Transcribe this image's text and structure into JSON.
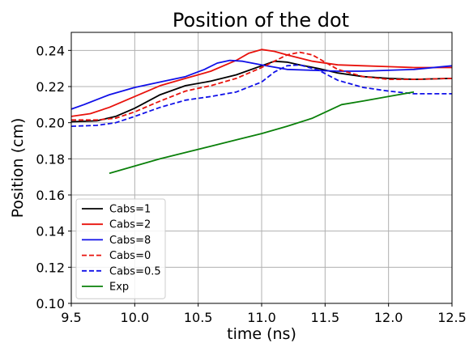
{
  "chart_data": {
    "type": "line",
    "title": "Position of the dot",
    "xlabel": "time (ns)",
    "ylabel": "Position (cm)",
    "xlim": [
      9.5,
      12.5
    ],
    "ylim": [
      0.1,
      0.25
    ],
    "xticks": [
      9.5,
      10.0,
      10.5,
      11.0,
      11.5,
      12.0,
      12.5
    ],
    "xtick_labels": [
      "9.5",
      "10.0",
      "10.5",
      "11.0",
      "11.5",
      "12.0",
      "12.5"
    ],
    "yticks": [
      0.1,
      0.12,
      0.14,
      0.16,
      0.18,
      0.2,
      0.22,
      0.24
    ],
    "ytick_labels": [
      "0.10",
      "0.12",
      "0.14",
      "0.16",
      "0.18",
      "0.20",
      "0.22",
      "0.24"
    ],
    "grid": true,
    "legend_position": "lower-left",
    "series": [
      {
        "name": "Cabs=1",
        "color": "#000000",
        "dash": "solid",
        "x": [
          9.5,
          9.7,
          9.85,
          10.0,
          10.2,
          10.4,
          10.6,
          10.8,
          11.0,
          11.1,
          11.2,
          11.3,
          11.45,
          11.6,
          11.8,
          12.0,
          12.2,
          12.5
        ],
        "y": [
          0.2005,
          0.201,
          0.2035,
          0.208,
          0.2155,
          0.2205,
          0.223,
          0.2265,
          0.2315,
          0.234,
          0.2335,
          0.232,
          0.23,
          0.2275,
          0.2255,
          0.2245,
          0.224,
          0.2245
        ]
      },
      {
        "name": "Cabs=2",
        "color": "#e8120c",
        "dash": "solid",
        "x": [
          9.5,
          9.65,
          9.8,
          10.0,
          10.2,
          10.4,
          10.6,
          10.8,
          10.9,
          11.0,
          11.1,
          11.2,
          11.4,
          11.6,
          11.8,
          12.0,
          12.2,
          12.5
        ],
        "y": [
          0.2035,
          0.205,
          0.2085,
          0.2145,
          0.2205,
          0.2245,
          0.2285,
          0.2345,
          0.2385,
          0.2405,
          0.2395,
          0.2375,
          0.234,
          0.232,
          0.2315,
          0.231,
          0.2305,
          0.2305
        ]
      },
      {
        "name": "Cabs=8",
        "color": "#1010e8",
        "dash": "solid",
        "x": [
          9.5,
          9.6,
          9.8,
          10.0,
          10.2,
          10.4,
          10.55,
          10.65,
          10.75,
          10.85,
          11.0,
          11.2,
          11.4,
          11.6,
          11.8,
          12.0,
          12.2,
          12.5
        ],
        "y": [
          0.2075,
          0.21,
          0.2155,
          0.2195,
          0.2225,
          0.2255,
          0.2295,
          0.233,
          0.2345,
          0.234,
          0.232,
          0.2295,
          0.229,
          0.2285,
          0.2285,
          0.229,
          0.2295,
          0.2315
        ]
      },
      {
        "name": "Cabs=0",
        "color": "#e8120c",
        "dash": "dashed",
        "x": [
          9.5,
          9.7,
          9.85,
          10.0,
          10.2,
          10.4,
          10.6,
          10.8,
          11.0,
          11.1,
          11.2,
          11.3,
          11.4,
          11.6,
          11.8,
          12.0,
          12.2,
          12.5
        ],
        "y": [
          0.2015,
          0.2015,
          0.2025,
          0.206,
          0.212,
          0.2175,
          0.2205,
          0.2245,
          0.2305,
          0.234,
          0.2375,
          0.239,
          0.2375,
          0.2295,
          0.2255,
          0.224,
          0.224,
          0.2245
        ]
      },
      {
        "name": "Cabs=0.5",
        "color": "#1010e8",
        "dash": "dashed",
        "x": [
          9.5,
          9.7,
          9.85,
          10.0,
          10.2,
          10.4,
          10.6,
          10.8,
          11.0,
          11.1,
          11.2,
          11.3,
          11.45,
          11.6,
          11.8,
          12.0,
          12.2,
          12.5
        ],
        "y": [
          0.198,
          0.1985,
          0.2,
          0.2035,
          0.2085,
          0.2125,
          0.2145,
          0.217,
          0.2225,
          0.228,
          0.2315,
          0.232,
          0.229,
          0.2235,
          0.2195,
          0.2175,
          0.216,
          0.216
        ]
      },
      {
        "name": "Exp",
        "color": "#0a800a",
        "dash": "solid",
        "x": [
          9.8,
          10.0,
          10.2,
          10.4,
          10.6,
          10.8,
          11.0,
          11.2,
          11.4,
          11.63,
          11.8,
          12.0,
          12.2
        ],
        "y": [
          0.172,
          0.176,
          0.18,
          0.1835,
          0.187,
          0.1905,
          0.194,
          0.198,
          0.2025,
          0.21,
          0.212,
          0.2145,
          0.217
        ]
      }
    ]
  }
}
